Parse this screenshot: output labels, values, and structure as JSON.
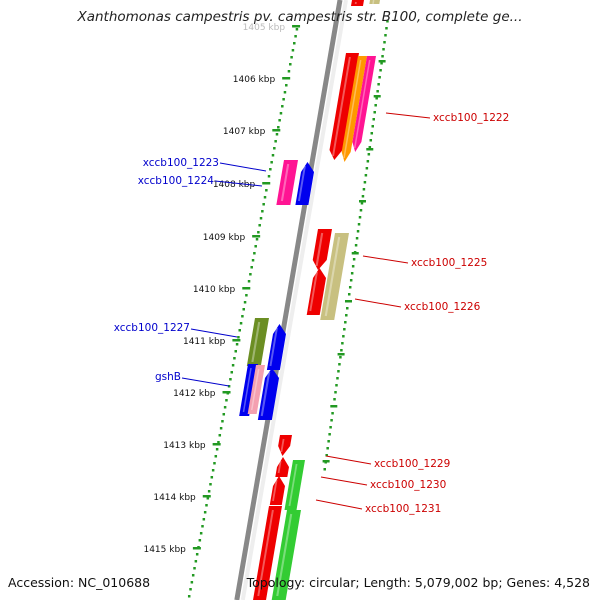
{
  "title": "Xanthomonas campestris pv. campestris str. B100, complete ge...",
  "ticks": [
    {
      "kbp": 1405,
      "label": "1405 kbp"
    },
    {
      "kbp": 1406,
      "label": "1406 kbp"
    },
    {
      "kbp": 1407,
      "label": "1407 kbp"
    },
    {
      "kbp": 1408,
      "label": "1408 kbp"
    },
    {
      "kbp": 1409,
      "label": "1409 kbp"
    },
    {
      "kbp": 1410,
      "label": "1410 kbp"
    },
    {
      "kbp": 1411,
      "label": "1411 kbp"
    },
    {
      "kbp": 1412,
      "label": "1412 kbp"
    },
    {
      "kbp": 1413,
      "label": "1413 kbp"
    },
    {
      "kbp": 1414,
      "label": "1414 kbp"
    },
    {
      "kbp": 1415,
      "label": "1415 kbp"
    }
  ],
  "genes": [
    {
      "name": "xccb100_1222",
      "label_color": "#cc0000",
      "side": "right"
    },
    {
      "name": "xccb100_1223",
      "label_color": "#0000cc",
      "side": "left"
    },
    {
      "name": "xccb100_1224",
      "label_color": "#0000cc",
      "side": "left"
    },
    {
      "name": "xccb100_1225",
      "label_color": "#cc0000",
      "side": "right"
    },
    {
      "name": "xccb100_1226",
      "label_color": "#cc0000",
      "side": "right"
    },
    {
      "name": "xccb100_1227",
      "label_color": "#0000cc",
      "side": "left"
    },
    {
      "name": "gshB",
      "label_color": "#0000cc",
      "side": "left"
    },
    {
      "name": "xccb100_1229",
      "label_color": "#cc0000",
      "side": "right"
    },
    {
      "name": "xccb100_1230",
      "label_color": "#cc0000",
      "side": "right"
    },
    {
      "name": "xccb100_1231",
      "label_color": "#cc0000",
      "side": "right"
    }
  ],
  "colors": {
    "red": "#ee0000",
    "orange": "#ff9900",
    "pink": "#ff1493",
    "blue": "#0000ee",
    "khaki": "#c8c080",
    "olive": "#6b8e23",
    "green": "#33cc33",
    "backbone": "#888888",
    "tick_green": "#229922"
  },
  "footer": {
    "accession": "Accession: NC_010688",
    "summary": "Topology: circular; Length: 5,079,002 bp; Genes: 4,528"
  }
}
